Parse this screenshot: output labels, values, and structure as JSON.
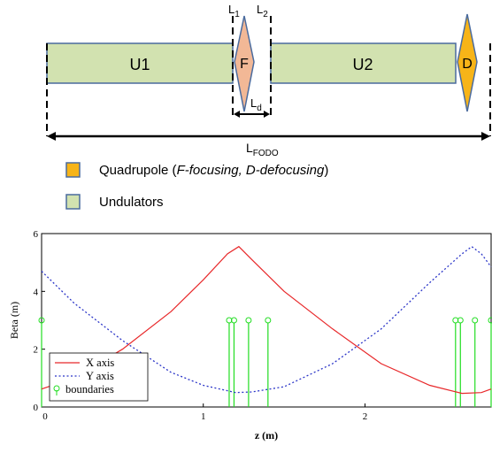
{
  "lattice": {
    "u1_label": "U1",
    "u2_label": "U2",
    "f_label": "F",
    "d_label": "D",
    "l1_main": "L",
    "l1_sub": "1",
    "l2_main": "L",
    "l2_sub": "2",
    "ld_main": "L",
    "ld_sub": "d",
    "lfodo_main": "L",
    "lfodo_sub": "FODO",
    "legend_quad_text_prefix": "Quadrupole (",
    "legend_quad_f": "F-focusing, D-defocusing",
    "legend_quad_text_suffix": ")",
    "legend_und_text": "Undulators"
  },
  "colors": {
    "undulator_fill": "#d2e2b0",
    "undulator_stroke": "#4a6b9e",
    "f_quad_fill": "#f2b896",
    "d_quad_fill": "#f7b418",
    "quad_stroke": "#4a6b9e",
    "x_series": "#e8282a",
    "y_series": "#2b35c8",
    "boundary": "#22dd22"
  },
  "chart_data": {
    "type": "line",
    "title": "",
    "xlabel": "z (m)",
    "ylabel": "Beta (m)",
    "xlim": [
      0,
      2.78
    ],
    "ylim": [
      0,
      6
    ],
    "x_ticks": [
      "0",
      "1",
      "2"
    ],
    "y_ticks": [
      "0",
      "2",
      "4",
      "6"
    ],
    "series": [
      {
        "name": "X axis",
        "style": "solid",
        "points": [
          [
            0,
            0.62
          ],
          [
            0.2,
            1.0
          ],
          [
            0.5,
            2.0
          ],
          [
            0.8,
            3.3
          ],
          [
            1.0,
            4.4
          ],
          [
            1.15,
            5.3
          ],
          [
            1.22,
            5.55
          ],
          [
            1.3,
            5.1
          ],
          [
            1.5,
            4.0
          ],
          [
            1.8,
            2.7
          ],
          [
            2.1,
            1.5
          ],
          [
            2.4,
            0.75
          ],
          [
            2.6,
            0.47
          ],
          [
            2.72,
            0.5
          ],
          [
            2.78,
            0.62
          ]
        ]
      },
      {
        "name": "Y axis",
        "style": "dotted",
        "points": [
          [
            0,
            4.7
          ],
          [
            0.2,
            3.6
          ],
          [
            0.5,
            2.3
          ],
          [
            0.8,
            1.2
          ],
          [
            1.0,
            0.75
          ],
          [
            1.2,
            0.5
          ],
          [
            1.3,
            0.52
          ],
          [
            1.5,
            0.7
          ],
          [
            1.8,
            1.5
          ],
          [
            2.1,
            2.7
          ],
          [
            2.4,
            4.3
          ],
          [
            2.6,
            5.3
          ],
          [
            2.66,
            5.55
          ],
          [
            2.72,
            5.3
          ],
          [
            2.78,
            4.85
          ]
        ]
      }
    ],
    "boundaries": {
      "name": "boundaries",
      "height": 3,
      "z": [
        0,
        1.16,
        1.19,
        1.28,
        1.4,
        2.56,
        2.59,
        2.68,
        2.78
      ]
    },
    "legend_position": "bottom-left",
    "grid": false
  }
}
